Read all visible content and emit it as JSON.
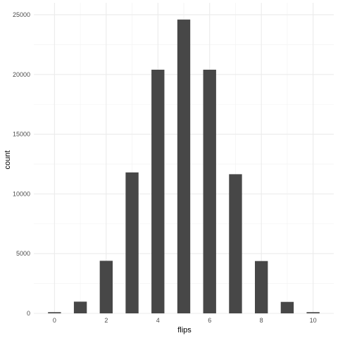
{
  "chart_data": {
    "type": "bar",
    "title": "",
    "xlabel": "flips",
    "ylabel": "count",
    "x": [
      0,
      1,
      2,
      3,
      4,
      5,
      6,
      7,
      8,
      9,
      10
    ],
    "values": [
      100,
      980,
      4400,
      11800,
      20400,
      24600,
      20400,
      11650,
      4380,
      960,
      100
    ],
    "xlim": [
      -0.8,
      10.8
    ],
    "ylim": [
      0,
      26000
    ],
    "xticks": [
      0,
      2,
      4,
      6,
      8,
      10
    ],
    "xtick_labels": [
      "0",
      "2",
      "4",
      "6",
      "8",
      "10"
    ],
    "yticks": [
      0,
      5000,
      10000,
      15000,
      20000,
      25000
    ],
    "ytick_labels": [
      "0",
      "5000",
      "10000",
      "15000",
      "20000",
      "25000"
    ],
    "grid": true,
    "legend": "none",
    "bar_color": "#474747",
    "grid_major_color": "#ebebeb",
    "grid_minor_color": "#f3f3f3"
  }
}
